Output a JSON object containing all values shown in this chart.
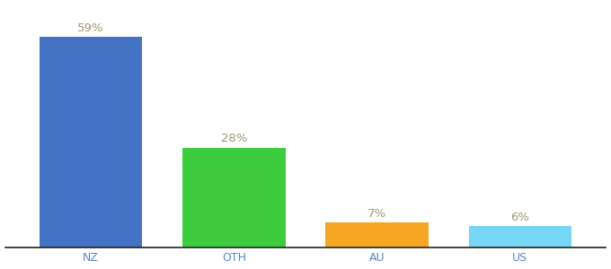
{
  "categories": [
    "NZ",
    "OTH",
    "AU",
    "US"
  ],
  "values": [
    59,
    28,
    7,
    6
  ],
  "bar_colors": [
    "#4472c4",
    "#3dcc3d",
    "#f5a623",
    "#76d6f5"
  ],
  "labels": [
    "59%",
    "28%",
    "7%",
    "6%"
  ],
  "label_color": "#a09878",
  "background_color": "#ffffff",
  "ylim": [
    0,
    68
  ],
  "bar_width": 0.72,
  "label_fontsize": 9.5,
  "tick_fontsize": 9,
  "tick_color": "#5588cc"
}
